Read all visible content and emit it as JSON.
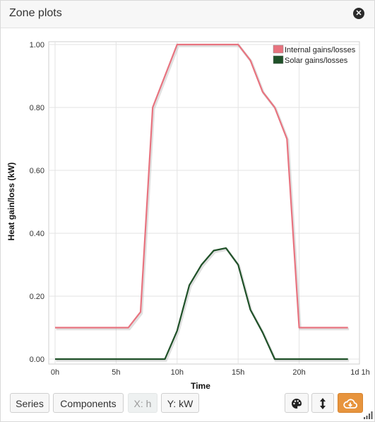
{
  "window": {
    "title": "Zone plots"
  },
  "chart_data": {
    "type": "line",
    "xlabel": "Time",
    "ylabel": "Heat gain/loss (kW)",
    "x_ticks": [
      {
        "label": "0h",
        "hour": 0
      },
      {
        "label": "5h",
        "hour": 5
      },
      {
        "label": "10h",
        "hour": 10
      },
      {
        "label": "15h",
        "hour": 15
      },
      {
        "label": "20h",
        "hour": 20
      },
      {
        "label": "1d 1h",
        "hour": 25
      }
    ],
    "y_ticks": [
      "0.00",
      "0.20",
      "0.40",
      "0.60",
      "0.80",
      "1.00"
    ],
    "ylim": [
      0,
      1
    ],
    "xlim": [
      0,
      25
    ],
    "grid": true,
    "legend_position": "top-right",
    "series": [
      {
        "name": "Internal gains/losses",
        "color": "#e8737f",
        "x": [
          0,
          1,
          2,
          3,
          4,
          5,
          6,
          7,
          8,
          9,
          10,
          11,
          12,
          13,
          14,
          15,
          16,
          17,
          18,
          19,
          20,
          21,
          22,
          23,
          24
        ],
        "values": [
          0.1,
          0.1,
          0.1,
          0.1,
          0.1,
          0.1,
          0.1,
          0.15,
          0.8,
          0.9,
          1.0,
          1.0,
          1.0,
          1.0,
          1.0,
          1.0,
          0.95,
          0.85,
          0.8,
          0.7,
          0.1,
          0.1,
          0.1,
          0.1,
          0.1
        ]
      },
      {
        "name": "Solar gains/losses",
        "color": "#1f5128",
        "x": [
          0,
          1,
          2,
          3,
          4,
          5,
          6,
          7,
          8,
          9,
          10,
          11,
          12,
          13,
          14,
          15,
          16,
          17,
          18,
          19,
          20,
          21,
          22,
          23,
          24
        ],
        "values": [
          0,
          0,
          0,
          0,
          0,
          0,
          0,
          0,
          0,
          0,
          0.09,
          0.235,
          0.3,
          0.345,
          0.353,
          0.3,
          0.157,
          0.085,
          0,
          0,
          0,
          0,
          0,
          0,
          0
        ]
      }
    ]
  },
  "toolbar": {
    "series_label": "Series",
    "components_label": "Components",
    "x_unit_label": "X: h",
    "y_unit_label": "Y: kW"
  },
  "icons": {
    "close": "close-icon",
    "palette": "palette-icon",
    "sort": "vertical-arrows-icon",
    "cloud": "cloud-download-icon",
    "resize": "resize-grip-icon"
  },
  "colors": {
    "accent": "#e7943d"
  }
}
